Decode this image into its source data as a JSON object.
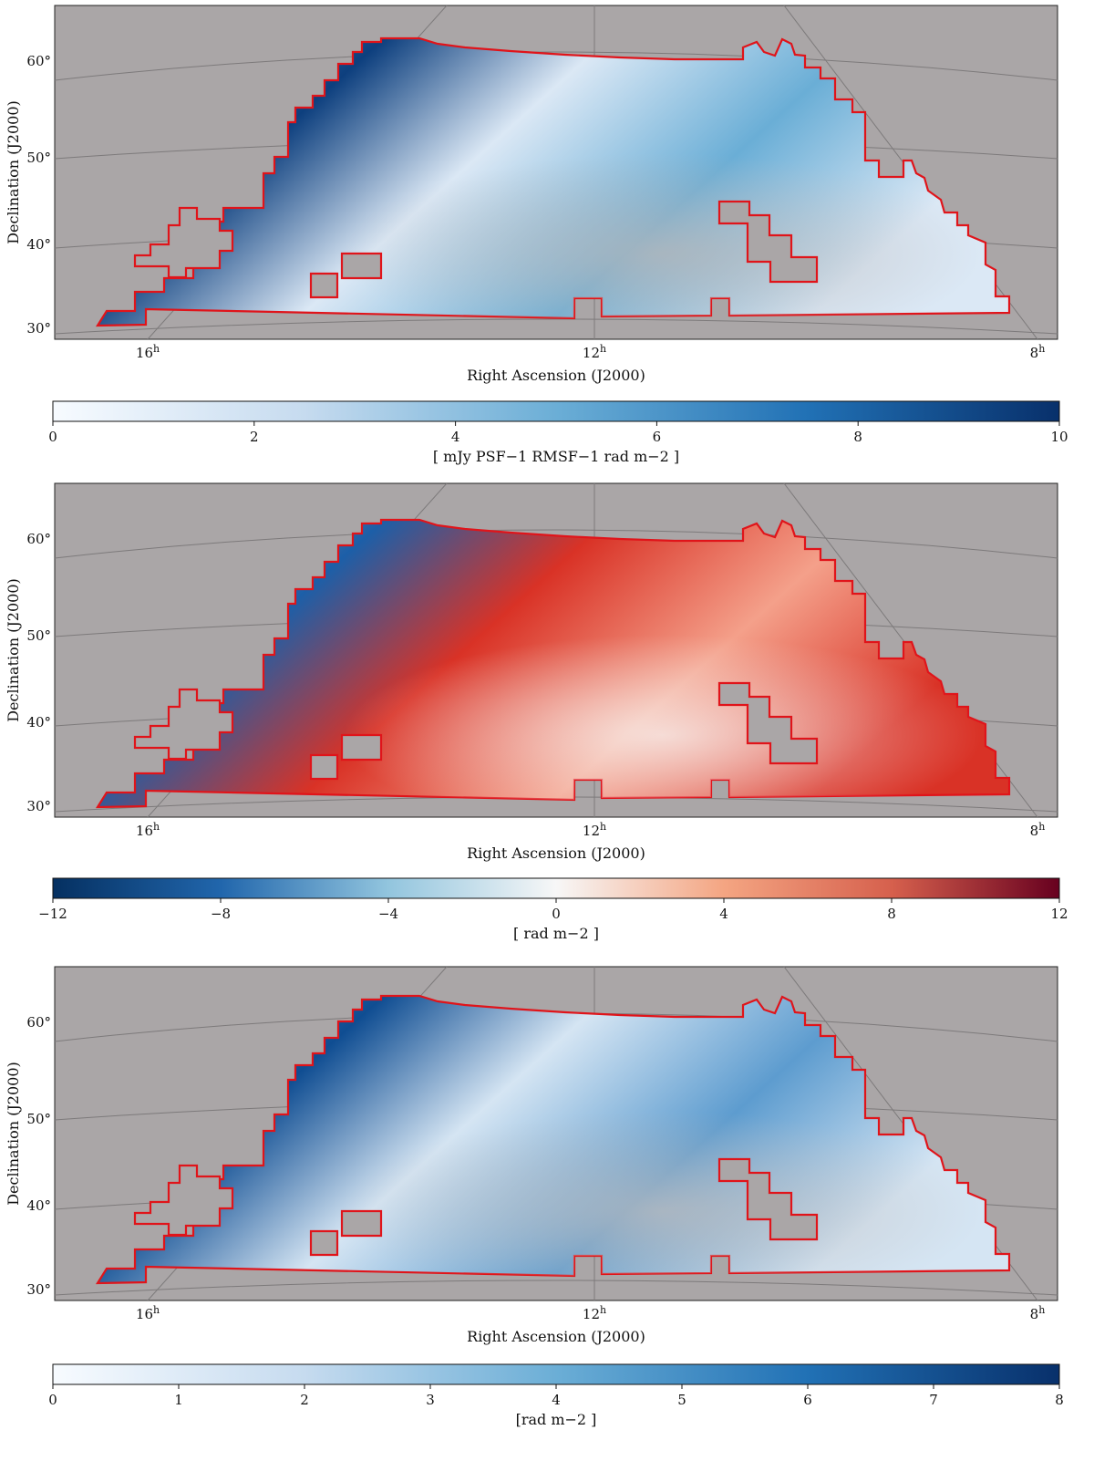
{
  "panels": [
    {
      "xlabel": "Right Ascension (J2000)",
      "ylabel": "Declination (J2000)",
      "dec_ticks": [
        "60°",
        "50°",
        "40°",
        "30°"
      ],
      "ra_ticks": [
        "16",
        "12",
        "8"
      ],
      "ra_unit": "h",
      "fill_colors": [
        "#0d3f7e",
        "#6aaed6",
        "#dbe8f5",
        "#b8b6b7"
      ],
      "colorbar": {
        "ticks": [
          "0",
          "2",
          "4",
          "6",
          "8",
          "10"
        ],
        "range": [
          0,
          10
        ],
        "label": "[ mJy PSF−1 RMSF−1 rad m−2 ]",
        "colormap": [
          "#f7fbff",
          "#c6dbef",
          "#6baed6",
          "#2171b5",
          "#08306b"
        ]
      }
    },
    {
      "xlabel": "Right Ascension (J2000)",
      "ylabel": "Declination (J2000)",
      "dec_ticks": [
        "60°",
        "50°",
        "40°",
        "30°"
      ],
      "ra_ticks": [
        "16",
        "12",
        "8"
      ],
      "ra_unit": "h",
      "fill_colors": [
        "#1c5fa8",
        "#f4a08a",
        "#d93226",
        "#f7f5f4"
      ],
      "colorbar": {
        "ticks": [
          "−12",
          "−8",
          "−4",
          "0",
          "4",
          "8",
          "12"
        ],
        "range": [
          -12,
          12
        ],
        "label": "[ rad m−2 ]",
        "colormap": [
          "#053061",
          "#2166ac",
          "#92c5de",
          "#f7f7f7",
          "#f4a582",
          "#d6604d",
          "#67001f"
        ]
      }
    },
    {
      "xlabel": "Right Ascension (J2000)",
      "ylabel": "Declination (J2000)",
      "dec_ticks": [
        "60°",
        "50°",
        "40°",
        "30°"
      ],
      "ra_ticks": [
        "16",
        "12",
        "8"
      ],
      "ra_unit": "h",
      "fill_colors": [
        "#0f4d92",
        "#5d9ccf",
        "#d5e5f3",
        "#bdbbbc"
      ],
      "colorbar": {
        "ticks": [
          "0",
          "1",
          "2",
          "3",
          "4",
          "5",
          "6",
          "7",
          "8"
        ],
        "range": [
          0,
          8
        ],
        "label": "[rad m−2 ]",
        "colormap": [
          "#f7fbff",
          "#c6dbef",
          "#6baed6",
          "#2171b5",
          "#08306b"
        ]
      }
    }
  ]
}
